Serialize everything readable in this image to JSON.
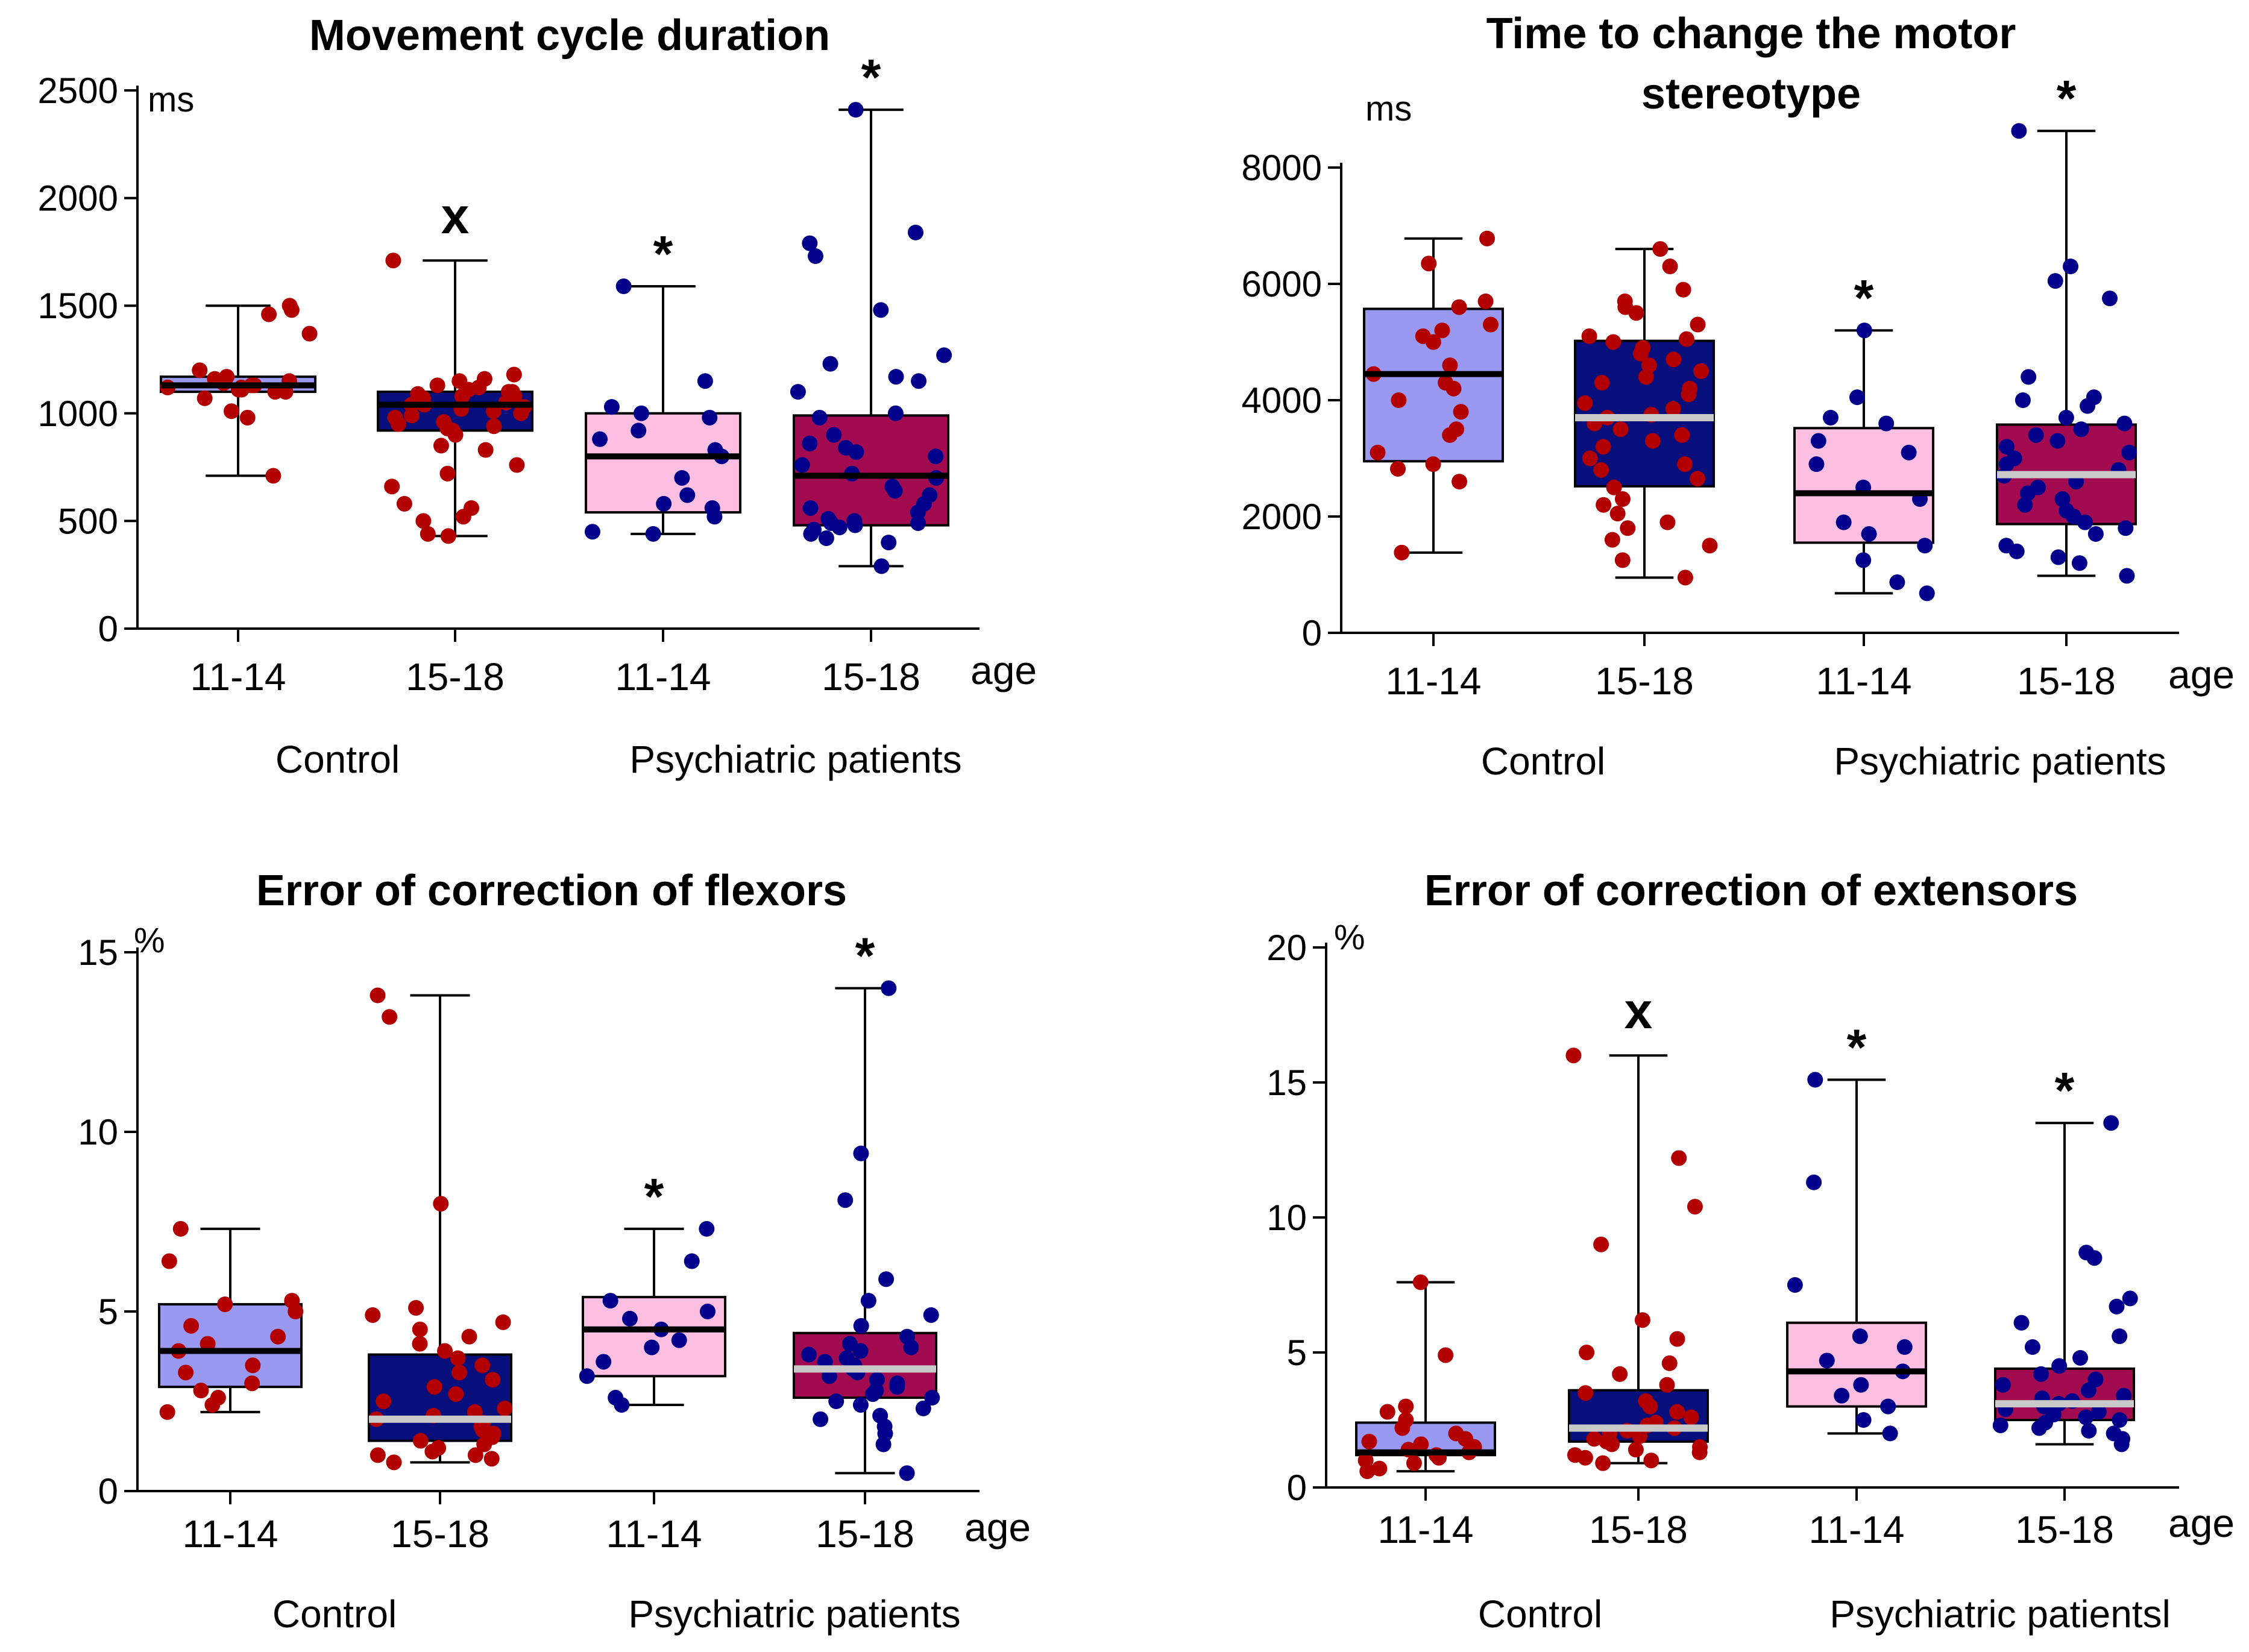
{
  "colors": {
    "lightblue": "#9a99f2",
    "navy": "#060f7c",
    "pink": "#fcbfe2",
    "maroon": "#a30b50",
    "red_dot": "#b20000",
    "blue_dot": "#00008b",
    "black": "#000000",
    "gray_median": "#c9c9c9"
  },
  "chart_data": [
    {
      "type": "box",
      "title": [
        "Movement cycle duration"
      ],
      "ylabel": "ms",
      "xlabel": "age",
      "ylim": [
        0,
        2500
      ],
      "yticks": [
        0,
        500,
        1000,
        1500,
        2000,
        2500
      ],
      "groups": [
        "Control",
        "Psychiatric patients"
      ],
      "categories": [
        "11-14",
        "15-18",
        "11-14",
        "15-18"
      ],
      "series": [
        {
          "group": "Control",
          "age": "11-14",
          "fill": "lightblue",
          "dot": "red_dot",
          "median_color": "black",
          "min": 710,
          "q1": 1100,
          "median": 1130,
          "q3": 1170,
          "max": 1500,
          "mark": "",
          "points": [
            710,
            980,
            1010,
            1070,
            1100,
            1100,
            1110,
            1110,
            1120,
            1120,
            1130,
            1130,
            1140,
            1150,
            1160,
            1170,
            1200,
            1370,
            1460,
            1480,
            1500
          ]
        },
        {
          "group": "Control",
          "age": "15-18",
          "fill": "navy",
          "dot": "red_dot",
          "median_color": "black",
          "min": 430,
          "q1": 920,
          "median": 1040,
          "q3": 1100,
          "max": 1710,
          "mark": "x",
          "points": [
            430,
            440,
            500,
            520,
            560,
            580,
            660,
            720,
            760,
            830,
            850,
            900,
            920,
            930,
            940,
            950,
            960,
            980,
            990,
            1000,
            1010,
            1020,
            1030,
            1040,
            1040,
            1050,
            1060,
            1070,
            1080,
            1080,
            1090,
            1100,
            1100,
            1110,
            1120,
            1130,
            1150,
            1160,
            1180,
            1710
          ]
        },
        {
          "group": "Psychiatric patients",
          "age": "11-14",
          "fill": "pink",
          "dot": "blue_dot",
          "median_color": "black",
          "min": 440,
          "q1": 540,
          "median": 800,
          "q3": 1000,
          "max": 1590,
          "mark": "*",
          "points": [
            440,
            450,
            520,
            560,
            580,
            620,
            700,
            800,
            830,
            880,
            920,
            980,
            1000,
            1030,
            1150,
            1590
          ]
        },
        {
          "group": "Psychiatric patients",
          "age": "15-18",
          "fill": "maroon",
          "dot": "blue_dot",
          "median_color": "black",
          "min": 290,
          "q1": 480,
          "median": 710,
          "q3": 990,
          "max": 2410,
          "mark": "*",
          "points": [
            290,
            400,
            420,
            440,
            460,
            470,
            480,
            490,
            490,
            500,
            510,
            540,
            560,
            580,
            620,
            640,
            660,
            700,
            720,
            760,
            800,
            820,
            840,
            860,
            900,
            980,
            1000,
            1100,
            1150,
            1170,
            1230,
            1270,
            1480,
            1730,
            1790,
            1840,
            2410
          ]
        }
      ]
    },
    {
      "type": "box",
      "title": [
        "Time to change the motor",
        "stereotype"
      ],
      "ylabel": "ms",
      "xlabel": "age",
      "ylim": [
        0,
        8000
      ],
      "yticks": [
        0,
        2000,
        4000,
        6000,
        8000
      ],
      "groups": [
        "Control",
        "Psychiatric patients"
      ],
      "categories": [
        "11-14",
        "15-18",
        "11-14",
        "15-18"
      ],
      "series": [
        {
          "group": "Control",
          "age": "11-14",
          "fill": "lightblue",
          "dot": "red_dot",
          "median_color": "black",
          "min": 1380,
          "q1": 2950,
          "median": 4450,
          "q3": 5570,
          "max": 6780,
          "mark": "",
          "points": [
            1380,
            2600,
            2820,
            2900,
            3100,
            3400,
            3500,
            3800,
            4000,
            4200,
            4300,
            4450,
            4600,
            5000,
            5100,
            5200,
            5300,
            5600,
            5700,
            6350,
            6780
          ]
        },
        {
          "group": "Control",
          "age": "15-18",
          "fill": "navy",
          "dot": "red_dot",
          "median_color": "gray_median",
          "min": 950,
          "q1": 2520,
          "median": 3700,
          "q3": 5020,
          "max": 6600,
          "mark": "",
          "points": [
            950,
            1250,
            1500,
            1600,
            1800,
            1900,
            2050,
            2200,
            2300,
            2500,
            2650,
            2800,
            2900,
            3000,
            3200,
            3300,
            3400,
            3500,
            3600,
            3700,
            3750,
            3850,
            3950,
            4100,
            4200,
            4300,
            4400,
            4500,
            4600,
            4700,
            4800,
            4900,
            5000,
            5050,
            5100,
            5300,
            5500,
            5600,
            5700,
            5900,
            6300,
            6600
          ]
        },
        {
          "group": "Psychiatric patients",
          "age": "11-14",
          "fill": "pink",
          "dot": "blue_dot",
          "median_color": "black",
          "min": 680,
          "q1": 1550,
          "median": 2400,
          "q3": 3520,
          "max": 5200,
          "mark": "*",
          "points": [
            680,
            870,
            1250,
            1500,
            1700,
            1900,
            2300,
            2500,
            2900,
            3100,
            3300,
            3600,
            3700,
            4050,
            5200
          ]
        },
        {
          "group": "Psychiatric patients",
          "age": "15-18",
          "fill": "maroon",
          "dot": "blue_dot",
          "median_color": "gray_median",
          "min": 980,
          "q1": 1870,
          "median": 2720,
          "q3": 3580,
          "max": 8630,
          "mark": "*",
          "points": [
            980,
            1200,
            1300,
            1400,
            1500,
            1700,
            1800,
            1900,
            2000,
            2100,
            2200,
            2300,
            2400,
            2500,
            2600,
            2700,
            2800,
            2900,
            3000,
            3100,
            3200,
            3300,
            3400,
            3500,
            3600,
            3700,
            3900,
            4000,
            4050,
            4400,
            5750,
            6050,
            6300,
            8630
          ]
        }
      ]
    },
    {
      "type": "box",
      "title": [
        "Error of correction of flexors"
      ],
      "ylabel": "%",
      "xlabel": "age",
      "ylim": [
        0,
        15
      ],
      "yticks": [
        0,
        5,
        10,
        15
      ],
      "groups": [
        "Control",
        "Psychiatric patients"
      ],
      "categories": [
        "11-14",
        "15-18",
        "11-14",
        "15-18"
      ],
      "series": [
        {
          "group": "Control",
          "age": "11-14",
          "fill": "lightblue",
          "dot": "red_dot",
          "median_color": "black",
          "min": 2.2,
          "q1": 2.9,
          "median": 3.9,
          "q3": 5.2,
          "max": 7.3,
          "mark": "",
          "points": [
            2.2,
            2.4,
            2.6,
            2.8,
            3.0,
            3.3,
            3.5,
            3.9,
            4.1,
            4.3,
            4.6,
            5.0,
            5.2,
            5.3,
            6.4,
            7.3
          ]
        },
        {
          "group": "Control",
          "age": "15-18",
          "fill": "navy",
          "dot": "red_dot",
          "median_color": "gray_median",
          "min": 0.8,
          "q1": 1.4,
          "median": 2.0,
          "q3": 3.8,
          "max": 13.8,
          "mark": "",
          "points": [
            0.8,
            0.9,
            1.0,
            1.0,
            1.1,
            1.2,
            1.3,
            1.4,
            1.5,
            1.6,
            1.7,
            1.8,
            1.9,
            2.0,
            2.1,
            2.2,
            2.3,
            2.5,
            2.7,
            2.9,
            3.1,
            3.3,
            3.5,
            3.7,
            3.9,
            4.1,
            4.3,
            4.5,
            4.7,
            4.9,
            5.1,
            8.0,
            13.2,
            13.8
          ]
        },
        {
          "group": "Psychiatric patients",
          "age": "11-14",
          "fill": "pink",
          "dot": "blue_dot",
          "median_color": "black",
          "min": 2.4,
          "q1": 3.2,
          "median": 4.5,
          "q3": 5.4,
          "max": 7.3,
          "mark": "*",
          "points": [
            2.4,
            2.6,
            3.2,
            3.6,
            4.0,
            4.2,
            4.5,
            4.8,
            5.0,
            5.3,
            6.4,
            7.3
          ]
        },
        {
          "group": "Psychiatric patients",
          "age": "15-18",
          "fill": "maroon",
          "dot": "blue_dot",
          "median_color": "gray_median",
          "min": 0.5,
          "q1": 2.6,
          "median": 3.4,
          "q3": 4.4,
          "max": 14.0,
          "mark": "*",
          "points": [
            0.5,
            1.3,
            1.6,
            1.8,
            2.0,
            2.1,
            2.3,
            2.4,
            2.5,
            2.6,
            2.7,
            2.8,
            2.9,
            3.0,
            3.1,
            3.2,
            3.3,
            3.4,
            3.5,
            3.6,
            3.7,
            3.8,
            3.9,
            4.0,
            4.1,
            4.3,
            4.6,
            4.9,
            5.3,
            5.9,
            8.1,
            9.4,
            14.0
          ]
        }
      ]
    },
    {
      "type": "box",
      "title": [
        "Error of correction of extensors"
      ],
      "ylabel": "%",
      "xlabel": "age",
      "ylim": [
        0,
        20
      ],
      "yticks": [
        0,
        5,
        10,
        15,
        20
      ],
      "groups": [
        "Control",
        "Psychiatric patientsl"
      ],
      "categories": [
        "11-14",
        "15-18",
        "11-14",
        "15-18"
      ],
      "series": [
        {
          "group": "Control",
          "age": "11-14",
          "fill": "lightblue",
          "dot": "red_dot",
          "median_color": "black",
          "min": 0.6,
          "q1": 1.2,
          "median": 1.3,
          "q3": 2.4,
          "max": 7.6,
          "mark": "",
          "points": [
            0.6,
            0.7,
            0.9,
            1.0,
            1.1,
            1.2,
            1.3,
            1.4,
            1.5,
            1.6,
            1.7,
            1.8,
            2.0,
            2.2,
            2.5,
            2.8,
            3.0,
            4.9,
            7.6
          ]
        },
        {
          "group": "Control",
          "age": "15-18",
          "fill": "navy",
          "dot": "red_dot",
          "median_color": "gray_median",
          "min": 0.9,
          "q1": 1.7,
          "median": 2.2,
          "q3": 3.6,
          "max": 16.0,
          "mark": "x",
          "points": [
            0.9,
            1.0,
            1.1,
            1.2,
            1.3,
            1.4,
            1.5,
            1.6,
            1.7,
            1.8,
            1.9,
            2.0,
            2.1,
            2.2,
            2.3,
            2.4,
            2.6,
            2.8,
            3.0,
            3.2,
            3.5,
            3.8,
            4.2,
            4.6,
            5.0,
            5.5,
            6.2,
            9.0,
            10.4,
            12.2,
            16.0
          ]
        },
        {
          "group": "Psychiatric patients",
          "age": "11-14",
          "fill": "pink",
          "dot": "blue_dot",
          "median_color": "black",
          "min": 2.0,
          "q1": 3.0,
          "median": 4.3,
          "q3": 6.1,
          "max": 15.1,
          "mark": "*",
          "points": [
            2.0,
            2.5,
            3.0,
            3.4,
            3.8,
            4.3,
            4.7,
            5.2,
            5.6,
            7.5,
            11.3,
            15.1
          ]
        },
        {
          "group": "Psychiatric patients",
          "age": "15-18",
          "fill": "maroon",
          "dot": "blue_dot",
          "median_color": "gray_median",
          "min": 1.6,
          "q1": 2.5,
          "median": 3.1,
          "q3": 4.4,
          "max": 13.5,
          "mark": "*",
          "points": [
            1.6,
            1.8,
            2.0,
            2.1,
            2.2,
            2.3,
            2.4,
            2.5,
            2.6,
            2.7,
            2.8,
            2.9,
            3.0,
            3.1,
            3.2,
            3.3,
            3.4,
            3.6,
            3.8,
            4.0,
            4.2,
            4.5,
            4.8,
            5.2,
            5.6,
            6.1,
            6.7,
            7.0,
            8.5,
            8.7,
            13.5
          ]
        }
      ]
    }
  ]
}
